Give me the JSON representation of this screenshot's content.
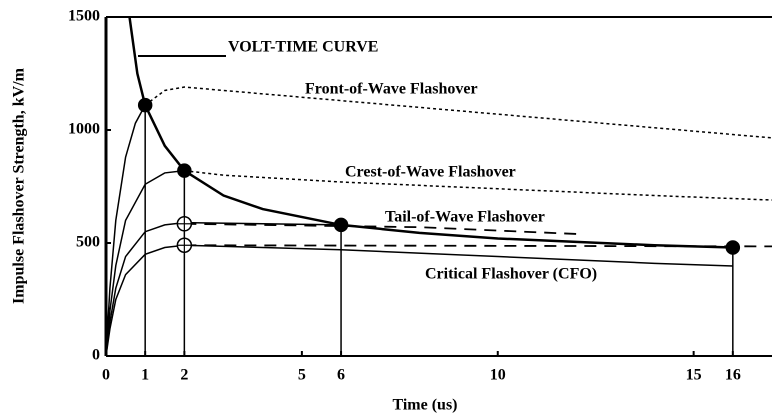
{
  "chart_data": {
    "type": "line",
    "ylabel": "Impulse Flashover Strength, kV/m",
    "xlabel": "Time (us)",
    "xlim": [
      0,
      17
    ],
    "ylim": [
      0,
      1500
    ],
    "xticks": [
      0,
      1,
      2,
      5,
      6,
      10,
      15,
      16
    ],
    "yticks": [
      0,
      500,
      1000,
      1500
    ],
    "color": "#000000",
    "annotations": [
      "VOLT-TIME CURVE",
      "Front-of-Wave Flashover",
      "Crest-of-Wave Flashover",
      "Tail-of-Wave Flashover",
      "Critical Flashover (CFO)"
    ],
    "series": [
      {
        "style": "thick",
        "x": [
          0.6,
          0.8,
          1,
          1.5,
          2,
          3,
          4,
          6,
          8,
          10,
          12,
          14,
          16
        ],
        "values": [
          1500,
          1250,
          1110,
          930,
          820,
          710,
          650,
          580,
          545,
          520,
          505,
          490,
          480
        ]
      },
      {
        "style": "solid",
        "x": [
          0,
          0.1,
          0.25,
          0.5,
          0.75,
          1
        ],
        "values": [
          0,
          300,
          600,
          880,
          1030,
          1110
        ]
      },
      {
        "style": "dotted",
        "x": [
          1,
          1.5,
          2,
          4,
          6,
          8,
          10,
          12,
          14,
          16,
          17
        ],
        "values": [
          1110,
          1175,
          1190,
          1160,
          1130,
          1100,
          1070,
          1040,
          1010,
          980,
          965
        ]
      },
      {
        "style": "solid",
        "x": [
          0,
          0.1,
          0.25,
          0.5,
          1,
          1.5,
          2
        ],
        "values": [
          0,
          200,
          400,
          600,
          760,
          810,
          820
        ]
      },
      {
        "style": "dotted",
        "x": [
          2,
          3,
          6,
          10,
          14,
          17
        ],
        "values": [
          820,
          800,
          770,
          740,
          710,
          690
        ]
      },
      {
        "style": "solid",
        "x": [
          0,
          0.1,
          0.25,
          0.5,
          1,
          1.5,
          2,
          4,
          6
        ],
        "values": [
          0,
          150,
          300,
          440,
          550,
          580,
          590,
          585,
          580
        ]
      },
      {
        "style": "solid",
        "x": [
          0,
          0.1,
          0.25,
          0.5,
          1,
          1.5,
          2,
          6,
          10,
          14,
          16
        ],
        "values": [
          0,
          120,
          250,
          360,
          450,
          480,
          490,
          470,
          440,
          410,
          398
        ]
      },
      {
        "style": "dashed",
        "x": [
          2,
          8,
          12
        ],
        "values": [
          585,
          570,
          540
        ]
      },
      {
        "style": "dashed",
        "x": [
          2,
          17
        ],
        "values": [
          490,
          485
        ]
      }
    ],
    "points": {
      "x": [
        1,
        2,
        6,
        16,
        2,
        2
      ],
      "values": [
        1110,
        820,
        580,
        480,
        585,
        490
      ],
      "filled": [
        true,
        true,
        true,
        true,
        false,
        false
      ]
    }
  }
}
